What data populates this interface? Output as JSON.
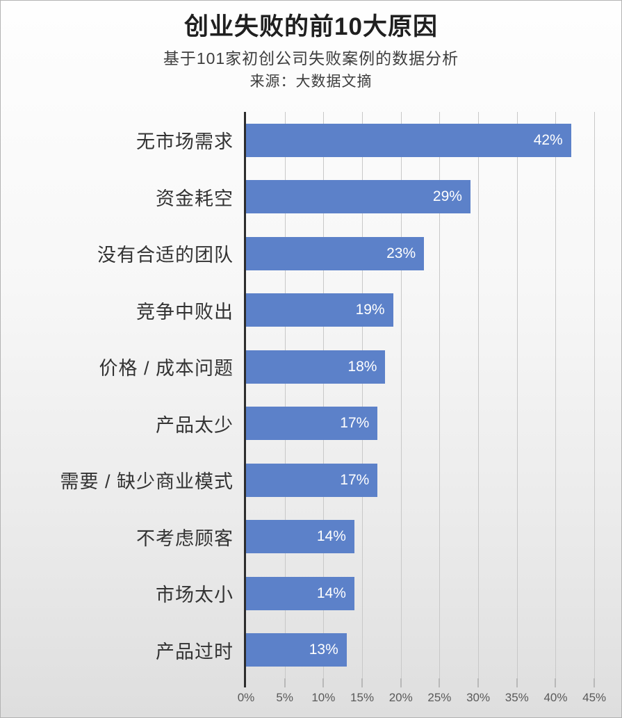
{
  "page": {
    "title": "创业失败的前10大原因",
    "subtitle": "基于101家初创公司失败案例的数据分析",
    "source": "来源：大数据文摘"
  },
  "chart_data": {
    "type": "bar",
    "orientation": "horizontal",
    "title": "创业失败的前10大原因",
    "subtitle": "基于101家初创公司失败案例的数据分析",
    "source": "来源：大数据文摘",
    "categories": [
      "无市场需求",
      "资金耗空",
      "没有合适的团队",
      "竞争中败出",
      "价格 / 成本问题",
      "产品太少",
      "需要 / 缺少商业模式",
      "不考虑顾客",
      "市场太小",
      "产品过时"
    ],
    "values": [
      42,
      29,
      23,
      19,
      18,
      17,
      17,
      14,
      14,
      13
    ],
    "value_labels": [
      "42%",
      "29%",
      "23%",
      "19%",
      "18%",
      "17%",
      "17%",
      "14%",
      "14%",
      "13%"
    ],
    "xlabel": "",
    "ylabel": "",
    "xlim": [
      0,
      47.5
    ],
    "x_ticks": [
      0,
      5,
      10,
      15,
      20,
      25,
      30,
      35,
      40,
      45
    ],
    "x_tick_labels": [
      "0%",
      "5%",
      "10%",
      "15%",
      "20%",
      "25%",
      "30%",
      "35%",
      "40%",
      "45%"
    ],
    "grid": "vertical-gridlines-on",
    "legend": "none",
    "value_label_position": "inside-end-white"
  },
  "style": {
    "colors": {
      "bar": "#5c81c9",
      "axis": "#2d2d2d",
      "gridline": "#c8c8c8",
      "tick": "#8f8f8f",
      "title": "#1f1f1f",
      "subtitle": "#3d3d3d",
      "category": "#333333",
      "axislabel": "#595959",
      "border": "#b3b3b3"
    }
  }
}
